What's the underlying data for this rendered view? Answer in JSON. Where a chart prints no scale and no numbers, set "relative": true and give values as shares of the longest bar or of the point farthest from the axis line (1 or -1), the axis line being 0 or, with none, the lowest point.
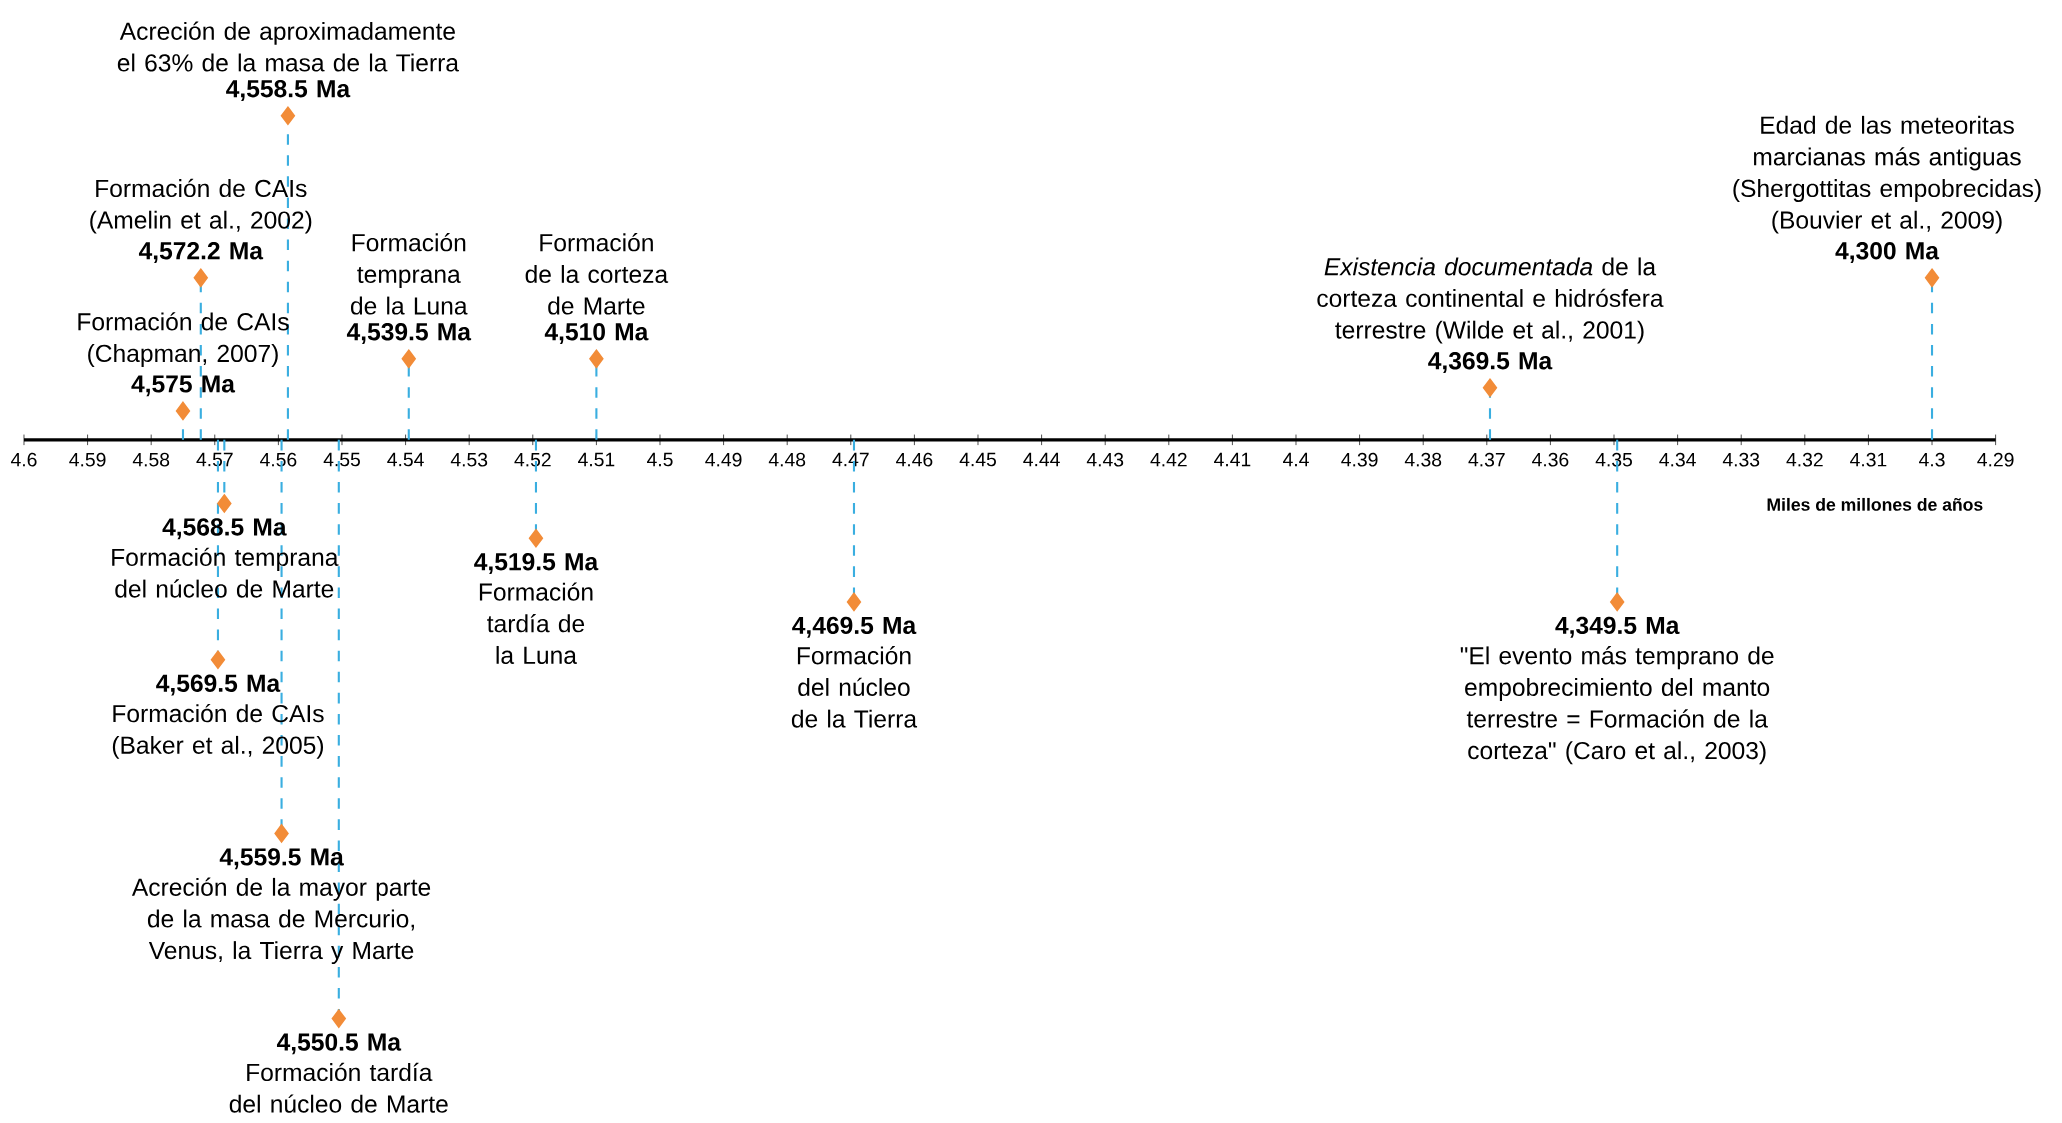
{
  "chart_data": {
    "type": "lollipop",
    "relative": true,
    "marker": "diamond",
    "line_style": "dashed",
    "color": "#f28c38",
    "xlabel": "Miles de millones de años",
    "xlim": [
      4.6,
      4.29
    ],
    "xticks": [
      4.6,
      4.59,
      4.58,
      4.57,
      4.56,
      4.55,
      4.54,
      4.53,
      4.52,
      4.51,
      4.5,
      4.49,
      4.48,
      4.47,
      4.46,
      4.45,
      4.44,
      4.43,
      4.42,
      4.41,
      4.4,
      4.39,
      4.38,
      4.37,
      4.36,
      4.35,
      4.34,
      4.33,
      4.32,
      4.31,
      4.3,
      4.29
    ],
    "x": [
      4.5585,
      4.5722,
      4.575,
      4.5395,
      4.51,
      4.3695,
      4.3,
      4.5685,
      4.5195,
      4.4695,
      4.3495,
      4.5695,
      4.5595,
      4.5505
    ],
    "values": [
      0.56,
      0.28,
      0.05,
      0.14,
      0.14,
      0.09,
      0.28,
      -0.11,
      -0.17,
      -0.28,
      -0.28,
      -0.38,
      -0.68,
      -1
    ],
    "annotations": [
      {
        "text": "4,558.5 Ma",
        "x": 4.5585,
        "y": 0.56
      },
      {
        "text": "Acreción de aproximadamente el 63% de la masa de la Tierra",
        "x": 4.5585,
        "y": 0.56
      },
      {
        "text": "4,572.2 Ma",
        "x": 4.5722,
        "y": 0.28
      },
      {
        "text": "Formación de CAIs (Amelin et al., 2002)",
        "x": 4.5722,
        "y": 0.28
      },
      {
        "text": "4,575 Ma",
        "x": 4.575,
        "y": 0.05
      },
      {
        "text": "Formación de CAIs (Chapman, 2007)",
        "x": 4.575,
        "y": 0.05
      },
      {
        "text": "4,539.5 Ma",
        "x": 4.5395,
        "y": 0.14
      },
      {
        "text": "Formación temprana de la Luna",
        "x": 4.5395,
        "y": 0.14
      },
      {
        "text": "4,510 Ma",
        "x": 4.51,
        "y": 0.14
      },
      {
        "text": "Formación de la corteza de Marte",
        "x": 4.51,
        "y": 0.14
      },
      {
        "text": "4,369.5 Ma",
        "x": 4.3695,
        "y": 0.09
      },
      {
        "text": "*Existencia documentada* de la corteza continental e hidrósfera terrestre (Wilde et al., 2001)",
        "x": 4.3695,
        "y": 0.09
      },
      {
        "text": "4,300 Ma",
        "x": 4.3,
        "y": 0.28
      },
      {
        "text": "Edad de las meteoritas marcianas más antiguas (Shergottitas empobrecidas) (Bouvier et al., 2009)",
        "x": 4.3,
        "y": 0.28
      },
      {
        "text": "4,568.5 Ma",
        "x": 4.5685,
        "y": -0.11
      },
      {
        "text": "Formación temprana del núcleo de Marte",
        "x": 4.5685,
        "y": -0.11
      },
      {
        "text": "4,519.5 Ma",
        "x": 4.5195,
        "y": -0.17
      },
      {
        "text": "Formación tardía de la Luna",
        "x": 4.5195,
        "y": -0.17
      },
      {
        "text": "4,469.5 Ma",
        "x": 4.4695,
        "y": -0.28
      },
      {
        "text": "Formación del núcleo de la Tierra",
        "x": 4.4695,
        "y": -0.28
      },
      {
        "text": "4,349.5 Ma",
        "x": 4.3495,
        "y": -0.28
      },
      {
        "text": "\"El evento más temprano de empobrecimiento del manto terrestre = Formación de la corteza\" (Caro et al., 2003)",
        "x": 4.3495,
        "y": -0.28
      },
      {
        "text": "4,569.5 Ma",
        "x": 4.5695,
        "y": -0.38
      },
      {
        "text": "Formación de CAIs (Baker et al., 2005)",
        "x": 4.5695,
        "y": -0.38
      },
      {
        "text": "4,559.5 Ma",
        "x": 4.5595,
        "y": -0.68
      },
      {
        "text": "Acreción de la mayor parte de la masa de Mercurio, Venus, la Tierra y Marte",
        "x": 4.5595,
        "y": -0.68
      },
      {
        "text": "4,550.5 Ma",
        "x": 4.5505,
        "y": -1
      },
      {
        "text": "Formación tardía del núcleo de Marte",
        "x": 4.5505,
        "y": -1
      }
    ]
  }
}
